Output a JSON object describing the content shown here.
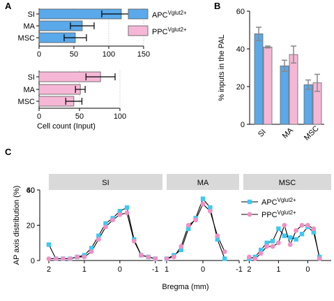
{
  "colors": {
    "apc": "#5aa9ea",
    "ppc": "#f6b7d6",
    "bar_err": "#888888",
    "cyan": "#3ec8f2",
    "pink": "#f090c4",
    "strip": "#d9d9d9"
  },
  "chart_data": [
    {
      "panel": "A",
      "type": "bar",
      "orientation": "horizontal",
      "series_name": "APC",
      "series_sup": "Vglut2+",
      "categories": [
        "SI",
        "MA",
        "MSC"
      ],
      "values": [
        118,
        62,
        52
      ],
      "errors": [
        28,
        17,
        16
      ],
      "xlim": [
        0,
        150
      ],
      "xticks": [
        "0",
        "50",
        "100",
        "150"
      ]
    },
    {
      "panel": "A",
      "type": "bar",
      "orientation": "horizontal",
      "series_name": "PPC",
      "series_sup": "Vglut2+",
      "categories": [
        "SI",
        "MA",
        "MSC"
      ],
      "values": [
        76,
        51,
        43
      ],
      "errors": [
        18,
        6,
        10
      ],
      "xlim": [
        0,
        100
      ],
      "xticks": [
        "0",
        "50",
        "100"
      ],
      "xlabel": "Cell count (Input)"
    },
    {
      "panel": "B",
      "type": "bar",
      "categories": [
        "SI",
        "MA",
        "MSC"
      ],
      "series": [
        {
          "name": "APC",
          "values": [
            48,
            31,
            21
          ],
          "errors": [
            3.5,
            3,
            2.5
          ]
        },
        {
          "name": "PPC",
          "values": [
            41,
            37,
            22
          ],
          "errors": [
            0.5,
            4.5,
            4.5
          ]
        }
      ],
      "ylim": [
        0,
        60
      ],
      "yticks": [
        "0",
        "20",
        "40",
        "60"
      ],
      "ylabel": "% inputs in the PAL"
    },
    {
      "panel": "C",
      "type": "line",
      "ylabel": "AP axis distribution (%)",
      "xlabel": "Bregma (mm)",
      "ylim": [
        0,
        40
      ],
      "yticks": [
        "0",
        "20",
        "40",
        "60"
      ],
      "facets": [
        {
          "title": "SI",
          "xlim": [
            2,
            -1.2
          ],
          "xticks": [
            "2",
            "1",
            "0",
            "-1"
          ],
          "apc": {
            "x": [
              2,
              1.8,
              1.6,
              1.4,
              1.2,
              1.0,
              0.8,
              0.6,
              0.4,
              0.2,
              0.0,
              -0.2,
              -0.4,
              -0.6,
              -0.8,
              -1.0
            ],
            "y": [
              9,
              1,
              1,
              1,
              2,
              3,
              7,
              14,
              21,
              24,
              28,
              30,
              12,
              3,
              2,
              1
            ]
          },
          "ppc": {
            "x": [
              2,
              1.8,
              1.6,
              1.4,
              1.2,
              1.0,
              0.8,
              0.6,
              0.4,
              0.2,
              0.0,
              -0.2,
              -0.4,
              -0.6,
              -0.8,
              -1.0
            ],
            "y": [
              1,
              1,
              1,
              1,
              2,
              2,
              5,
              12,
              19,
              23,
              26,
              27,
              11,
              3,
              2,
              1
            ]
          }
        },
        {
          "title": "MA",
          "xlim": [
            1,
            -1
          ],
          "xticks": [
            "1",
            "0",
            "-1"
          ],
          "apc": {
            "x": [
              1.0,
              0.8,
              0.6,
              0.4,
              0.2,
              0.0,
              -0.2,
              -0.4,
              -0.6
            ],
            "y": [
              1,
              3,
              6,
              18,
              24,
              35,
              30,
              12,
              1
            ]
          },
          "ppc": {
            "x": [
              1.0,
              0.8,
              0.6,
              0.4,
              0.2,
              0.0,
              -0.2,
              -0.4,
              -0.6
            ],
            "y": [
              1,
              2,
              8,
              20,
              23,
              32,
              28,
              14,
              5
            ]
          }
        },
        {
          "title": "MSC",
          "xlim": [
            2.2,
            -0.8
          ],
          "xticks": [
            "2",
            "1",
            "0"
          ],
          "apc": {
            "x": [
              2.0,
              1.8,
              1.6,
              1.4,
              1.2,
              1.0,
              0.8,
              0.6,
              0.4,
              0.2,
              0.0,
              -0.2,
              -0.4
            ],
            "y": [
              1,
              2,
              6,
              10,
              11,
              18,
              14,
              13,
              12,
              15,
              19,
              16,
              2
            ]
          },
          "ppc": {
            "x": [
              2.0,
              1.8,
              1.6,
              1.4,
              1.2,
              1.0,
              0.8,
              0.6,
              0.4,
              0.2,
              0.0,
              -0.2,
              -0.4
            ],
            "y": [
              2,
              1,
              4,
              8,
              8,
              10,
              20,
              9,
              17,
              20,
              20,
              18,
              1
            ]
          }
        }
      ],
      "legend": [
        {
          "name": "APC",
          "sup": "Vglut2+",
          "marker": "square"
        },
        {
          "name": "PPC",
          "sup": "Vglut2+",
          "marker": "circle"
        }
      ]
    }
  ],
  "panel_labels": [
    "A",
    "B",
    "C"
  ],
  "legend_top": [
    {
      "name": "APC",
      "sup": "Vglut2+"
    },
    {
      "name": "PPC",
      "sup": "Vglut2+"
    }
  ]
}
